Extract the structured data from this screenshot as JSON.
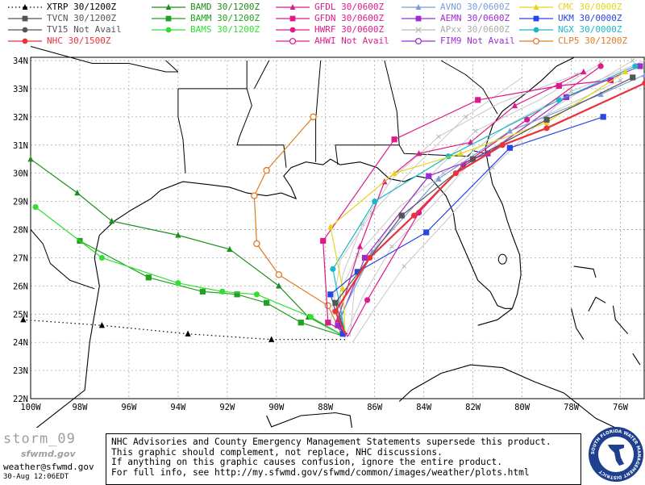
{
  "legend": [
    {
      "label": "XTRP 30/1200Z",
      "color": "#000000",
      "marker": "triangle",
      "dotted": true
    },
    {
      "label": "TVCN 30/1200Z",
      "color": "#555555",
      "marker": "square",
      "dotted": false
    },
    {
      "label": "TV15 Not Avail",
      "color": "#555555",
      "marker": "circle",
      "dotted": false
    },
    {
      "label": "NHC 30/1500Z",
      "color": "#e8323c",
      "marker": "circle",
      "dotted": false
    },
    {
      "label": "BAMD 30/1200Z",
      "color": "#1e8c1e",
      "marker": "triangle",
      "dotted": false
    },
    {
      "label": "BAMM 30/1200Z",
      "color": "#22a022",
      "marker": "square",
      "dotted": false
    },
    {
      "label": "BAMS 30/1200Z",
      "color": "#33dd33",
      "marker": "circle",
      "dotted": false
    },
    {
      "label": "GFDL 30/0600Z",
      "color": "#dd1a8c",
      "marker": "triangle",
      "dotted": false
    },
    {
      "label": "GFDN 30/0600Z",
      "color": "#dd1a8c",
      "marker": "square",
      "dotted": false
    },
    {
      "label": "HWRF 30/0600Z",
      "color": "#dd1a8c",
      "marker": "circle",
      "dotted": false
    },
    {
      "label": "AHWI  Not Avail",
      "color": "#dd1a8c",
      "marker": "open-circle",
      "dotted": false
    },
    {
      "label": "AVNO 30/0600Z",
      "color": "#7c9cd6",
      "marker": "triangle",
      "dotted": false
    },
    {
      "label": "AEMN 30/0600Z",
      "color": "#9c2ccf",
      "marker": "square",
      "dotted": false
    },
    {
      "label": "APxx  30/0600Z",
      "color": "#bbbbbb",
      "marker": "x",
      "dotted": false
    },
    {
      "label": "FIM9  Not Avail",
      "color": "#9c2ccf",
      "marker": "open-circle",
      "dotted": false
    },
    {
      "label": "CMC  30/0000Z",
      "color": "#e6d41a",
      "marker": "triangle",
      "dotted": false
    },
    {
      "label": "UKM  30/0000Z",
      "color": "#2846e0",
      "marker": "square",
      "dotted": false
    },
    {
      "label": "NGX  30/0000Z",
      "color": "#1ab8c8",
      "marker": "circle",
      "dotted": false
    },
    {
      "label": "CLP5  30/1200Z",
      "color": "#e07b20",
      "marker": "open-circle",
      "dotted": false
    }
  ],
  "axes": {
    "lat_labels": [
      "34N",
      "33N",
      "32N",
      "31N",
      "30N",
      "29N",
      "28N",
      "27N",
      "26N",
      "25N",
      "24N",
      "23N",
      "22N"
    ],
    "lon_labels": [
      "100W",
      "98W",
      "96W",
      "94W",
      "92W",
      "90W",
      "88W",
      "86W",
      "84W",
      "82W",
      "80W",
      "78W",
      "76W"
    ],
    "lat_values": [
      34,
      33,
      32,
      31,
      30,
      29,
      28,
      27,
      26,
      25,
      24,
      23,
      22
    ],
    "lon_values": [
      -100,
      -98,
      -96,
      -94,
      -92,
      -90,
      -88,
      -86,
      -84,
      -82,
      -80,
      -78,
      -76
    ],
    "lon_range": [
      -100,
      -75
    ],
    "lat_range": [
      22,
      34
    ]
  },
  "tracks": [
    {
      "model": "XTRP",
      "color": "#000000",
      "marker": "triangle",
      "dotted": true,
      "points": [
        [
          -87.2,
          24.1
        ],
        [
          -90.2,
          24.1
        ],
        [
          -93.6,
          24.3
        ],
        [
          -97.1,
          24.6
        ],
        [
          -100.3,
          24.8
        ]
      ]
    },
    {
      "model": "BAMD",
      "color": "#1e8c1e",
      "marker": "triangle",
      "points": [
        [
          -87.2,
          24.2
        ],
        [
          -88.7,
          24.9
        ],
        [
          -89.9,
          26.0
        ],
        [
          -91.9,
          27.3
        ],
        [
          -94.0,
          27.8
        ],
        [
          -96.7,
          28.3
        ],
        [
          -98.1,
          29.3
        ],
        [
          -100.0,
          30.5
        ]
      ]
    },
    {
      "model": "BAMM",
      "color": "#22a022",
      "marker": "square",
      "points": [
        [
          -87.2,
          24.2
        ],
        [
          -89.0,
          24.7
        ],
        [
          -90.4,
          25.4
        ],
        [
          -91.6,
          25.7
        ],
        [
          -93.0,
          25.8
        ],
        [
          -95.2,
          26.3
        ],
        [
          -98.0,
          27.6
        ]
      ]
    },
    {
      "model": "BAMS",
      "color": "#33dd33",
      "marker": "circle",
      "points": [
        [
          -87.2,
          24.2
        ],
        [
          -88.6,
          24.9
        ],
        [
          -90.8,
          25.7
        ],
        [
          -92.2,
          25.8
        ],
        [
          -94.0,
          26.1
        ],
        [
          -97.1,
          27.0
        ],
        [
          -99.8,
          28.8
        ]
      ]
    },
    {
      "model": "CLP5",
      "color": "#e07b20",
      "marker": "open-circle",
      "points": [
        [
          -87.3,
          24.2
        ],
        [
          -87.9,
          25.3
        ],
        [
          -89.9,
          26.4
        ],
        [
          -90.8,
          27.5
        ],
        [
          -90.9,
          29.2
        ],
        [
          -90.4,
          30.1
        ],
        [
          -88.5,
          32.0
        ]
      ]
    },
    {
      "model": "GFDL",
      "color": "#dd1a8c",
      "marker": "triangle",
      "points": [
        [
          -87.1,
          24.2
        ],
        [
          -87.5,
          24.8
        ],
        [
          -86.6,
          27.4
        ],
        [
          -85.6,
          29.7
        ],
        [
          -84.2,
          30.7
        ],
        [
          -82.1,
          31.1
        ],
        [
          -80.3,
          32.4
        ],
        [
          -77.5,
          33.6
        ]
      ]
    },
    {
      "model": "GFDN",
      "color": "#dd1a8c",
      "marker": "square",
      "points": [
        [
          -87.1,
          24.3
        ],
        [
          -87.9,
          24.7
        ],
        [
          -88.1,
          27.6
        ],
        [
          -85.2,
          31.2
        ],
        [
          -81.8,
          32.6
        ],
        [
          -78.5,
          33.1
        ],
        [
          -76.4,
          33.3
        ]
      ]
    },
    {
      "model": "HWRF",
      "color": "#dd1a8c",
      "marker": "circle",
      "points": [
        [
          -87.1,
          24.2
        ],
        [
          -86.3,
          25.5
        ],
        [
          -84.2,
          28.6
        ],
        [
          -82.4,
          30.3
        ],
        [
          -79.8,
          31.9
        ],
        [
          -76.8,
          33.8
        ]
      ]
    },
    {
      "model": "AEMN",
      "color": "#9c2ccf",
      "marker": "square",
      "points": [
        [
          -87.2,
          24.3
        ],
        [
          -87.5,
          24.6
        ],
        [
          -86.4,
          27.0
        ],
        [
          -83.8,
          29.9
        ],
        [
          -81.4,
          30.7
        ],
        [
          -78.2,
          32.7
        ],
        [
          -75.2,
          33.8
        ]
      ]
    },
    {
      "model": "AVNO",
      "color": "#7c9cd6",
      "marker": "triangle",
      "points": [
        [
          -87.2,
          24.3
        ],
        [
          -87.4,
          24.9
        ],
        [
          -86.1,
          27.2
        ],
        [
          -83.4,
          29.8
        ],
        [
          -80.5,
          31.5
        ],
        [
          -76.8,
          32.8
        ],
        [
          -75.0,
          33.5
        ]
      ]
    },
    {
      "model": "NGX",
      "color": "#1ab8c8",
      "marker": "circle",
      "points": [
        [
          -87.2,
          24.3
        ],
        [
          -87.7,
          26.6
        ],
        [
          -86.0,
          29.0
        ],
        [
          -83.0,
          30.6
        ],
        [
          -78.5,
          32.6
        ],
        [
          -75.4,
          33.8
        ]
      ]
    },
    {
      "model": "CMC",
      "color": "#e6d41a",
      "marker": "triangle",
      "points": [
        [
          -87.2,
          24.3
        ],
        [
          -87.3,
          25.9
        ],
        [
          -87.8,
          28.1
        ],
        [
          -85.2,
          30.0
        ],
        [
          -82.5,
          30.7
        ],
        [
          -79.0,
          31.8
        ],
        [
          -75.8,
          33.6
        ]
      ]
    },
    {
      "model": "UKM",
      "color": "#2846e0",
      "marker": "square",
      "points": [
        [
          -87.2,
          24.2
        ],
        [
          -87.3,
          24.3
        ],
        [
          -87.8,
          25.7
        ],
        [
          -86.7,
          26.5
        ],
        [
          -83.9,
          27.9
        ],
        [
          -80.5,
          30.9
        ],
        [
          -76.7,
          32.0
        ]
      ]
    },
    {
      "model": "TVCN",
      "color": "#555555",
      "marker": "square",
      "points": [
        [
          -87.2,
          24.3
        ],
        [
          -87.6,
          25.4
        ],
        [
          -84.9,
          28.5
        ],
        [
          -82.0,
          30.5
        ],
        [
          -79.0,
          31.9
        ],
        [
          -75.5,
          33.4
        ]
      ]
    },
    {
      "model": "NHC",
      "color": "#e8323c",
      "marker": "circle",
      "thick": true,
      "points": [
        [
          -87.2,
          24.3
        ],
        [
          -87.6,
          25.1
        ],
        [
          -86.2,
          27.0
        ],
        [
          -84.4,
          28.5
        ],
        [
          -82.7,
          30.0
        ],
        [
          -80.8,
          31.0
        ],
        [
          -79.0,
          31.6
        ],
        [
          -75.0,
          33.2
        ]
      ]
    }
  ],
  "apxx_tracks": [
    [
      [
        -87.3,
        24.3
      ],
      [
        -87.4,
        25.8
      ],
      [
        -86.7,
        27.1
      ],
      [
        -85.0,
        28.8
      ],
      [
        -83.2,
        30.0
      ],
      [
        -80.6,
        31.7
      ],
      [
        -78.0,
        32.9
      ],
      [
        -75.0,
        34.0
      ]
    ],
    [
      [
        -87.0,
        24.2
      ],
      [
        -86.8,
        26.1
      ],
      [
        -85.8,
        27.6
      ],
      [
        -84.1,
        29.6
      ],
      [
        -81.9,
        31.5
      ],
      [
        -79.3,
        32.6
      ],
      [
        -76.8,
        33.9
      ]
    ],
    [
      [
        -87.6,
        24.5
      ],
      [
        -87.3,
        26.4
      ],
      [
        -86.5,
        28.2
      ],
      [
        -85.3,
        29.8
      ],
      [
        -83.4,
        31.3
      ],
      [
        -80.9,
        32.5
      ],
      [
        -77.8,
        33.5
      ]
    ],
    [
      [
        -87.2,
        24.2
      ],
      [
        -86.5,
        25.6
      ],
      [
        -85.3,
        27.4
      ],
      [
        -83.6,
        28.9
      ],
      [
        -82.1,
        30.4
      ],
      [
        -79.4,
        31.9
      ],
      [
        -76.0,
        33.3
      ]
    ],
    [
      [
        -87.8,
        24.7
      ],
      [
        -87.4,
        26.9
      ],
      [
        -86.1,
        28.6
      ],
      [
        -84.4,
        30.2
      ],
      [
        -82.3,
        32.0
      ],
      [
        -80.0,
        33.4
      ]
    ],
    [
      [
        -86.9,
        24.0
      ],
      [
        -86.0,
        25.2
      ],
      [
        -84.8,
        26.7
      ],
      [
        -83.1,
        28.3
      ],
      [
        -81.2,
        30.2
      ],
      [
        -78.6,
        32.4
      ],
      [
        -75.5,
        34.0
      ]
    ]
  ],
  "footer": {
    "storm_name": "storm_09",
    "brand_sub": "sfwmd.gov",
    "email": "weather@sfwmd.gov",
    "date": "30-Aug 12:06EDT",
    "notice_lines": [
      "NHC Advisories and County Emergency Management Statements supersede this product.",
      "This graphic should complement, not replace, NHC discussions.",
      "If anything on this graphic causes confusion, ignore the entire product.",
      "For full info, see  http://my.sfwmd.gov/sfwmd/common/images/weather/plots.html"
    ],
    "seal_text": "SOUTH FLORIDA WATER MANAGEMENT DISTRICT"
  }
}
